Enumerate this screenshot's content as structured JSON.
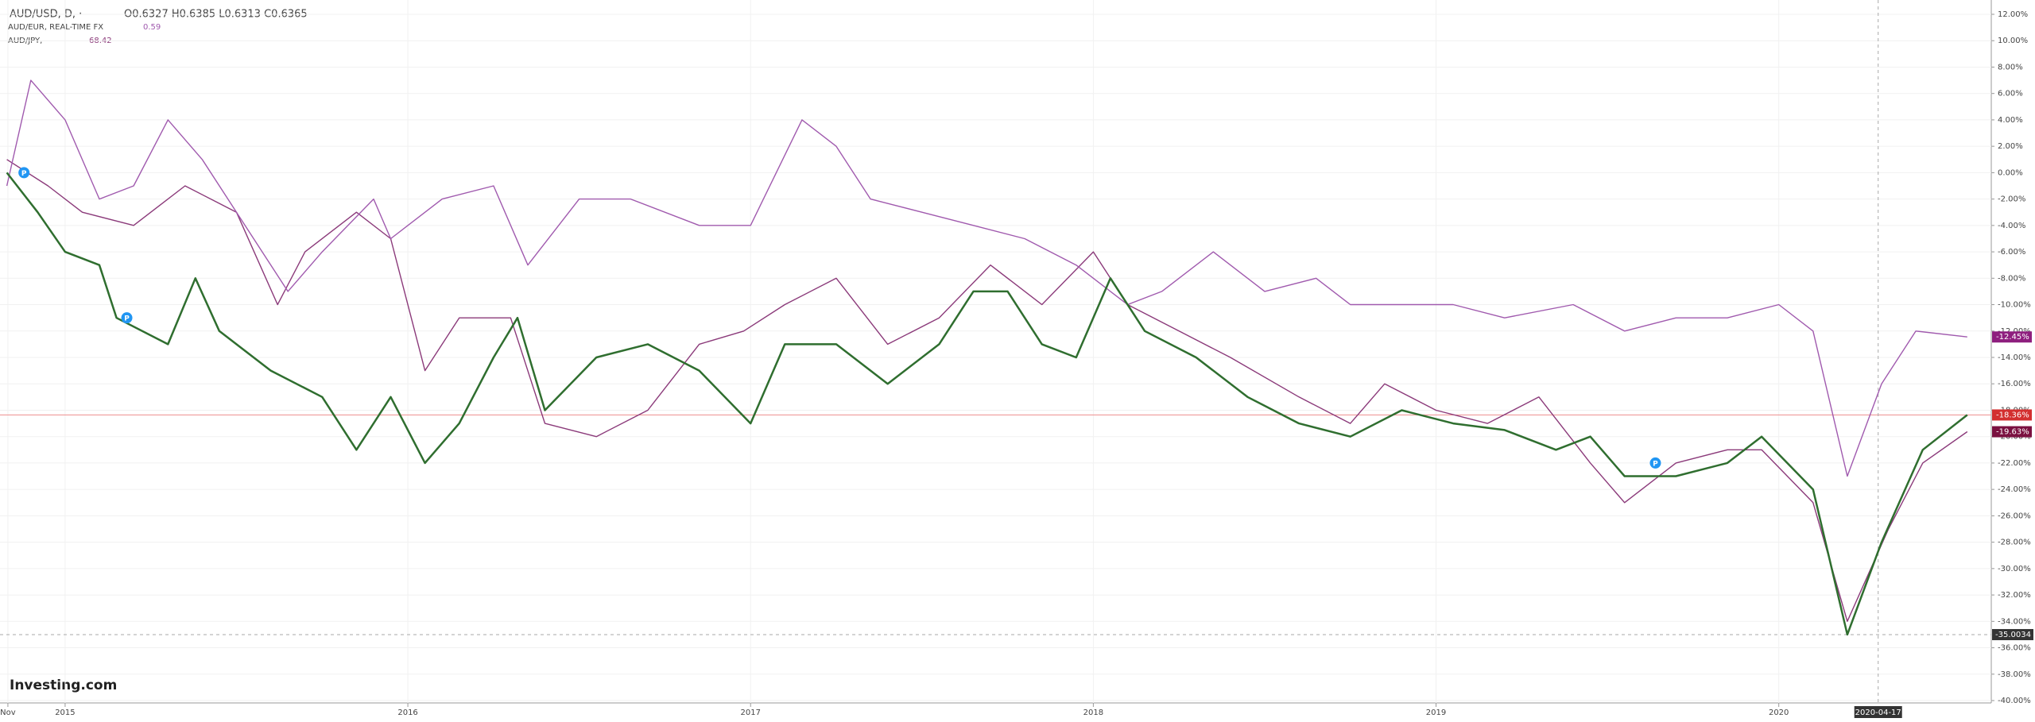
{
  "chart_data": {
    "type": "line",
    "title": "AUD/USD, D, ·",
    "ohlc_text": "O0.6327 H0.6385 L0.6313 C0.6365",
    "watermark": "Investing.com",
    "xlim": [
      2014.81,
      2020.62
    ],
    "ylim": [
      -40,
      12
    ],
    "grid": true,
    "xticks": [
      {
        "value": 2014.833,
        "label": "Nov"
      },
      {
        "value": 2015,
        "label": "2015"
      },
      {
        "value": 2016,
        "label": "2016"
      },
      {
        "value": 2017,
        "label": "2017"
      },
      {
        "value": 2018,
        "label": "2018"
      },
      {
        "value": 2019,
        "label": "2019"
      },
      {
        "value": 2020,
        "label": "2020"
      }
    ],
    "yticks": [
      {
        "value": 12,
        "label": "12.00%"
      },
      {
        "value": 10,
        "label": "10.00%"
      },
      {
        "value": 8,
        "label": "8.00%"
      },
      {
        "value": 6,
        "label": "6.00%"
      },
      {
        "value": 4,
        "label": "4.00%"
      },
      {
        "value": 2,
        "label": "2.00%"
      },
      {
        "value": 0,
        "label": "0.00%"
      },
      {
        "value": -2,
        "label": "-2.00%"
      },
      {
        "value": -4,
        "label": "-4.00%"
      },
      {
        "value": -6,
        "label": "-6.00%"
      },
      {
        "value": -8,
        "label": "-8.00%"
      },
      {
        "value": -10,
        "label": "-10.00%"
      },
      {
        "value": -12,
        "label": "-12.00%"
      },
      {
        "value": -14,
        "label": "-14.00%"
      },
      {
        "value": -16,
        "label": "-16.00%"
      },
      {
        "value": -18,
        "label": "-18.00%"
      },
      {
        "value": -20,
        "label": "-20.00%"
      },
      {
        "value": -22,
        "label": "-22.00%"
      },
      {
        "value": -24,
        "label": "-24.00%"
      },
      {
        "value": -26,
        "label": "-26.00%"
      },
      {
        "value": -28,
        "label": "-28.00%"
      },
      {
        "value": -30,
        "label": "-30.00%"
      },
      {
        "value": -32,
        "label": "-32.00%"
      },
      {
        "value": -34,
        "label": "-34.00%"
      },
      {
        "value": -36,
        "label": "-36.00%"
      },
      {
        "value": -38,
        "label": "-38.00%"
      },
      {
        "value": -40,
        "label": "-40.00%"
      }
    ],
    "series": [
      {
        "name": "AUD/USD",
        "color": "#2f6e2f",
        "width": 2.5,
        "x": [
          2014.83,
          2014.92,
          2015.0,
          2015.1,
          2015.15,
          2015.3,
          2015.38,
          2015.45,
          2015.6,
          2015.75,
          2015.85,
          2015.95,
          2016.05,
          2016.15,
          2016.25,
          2016.32,
          2016.4,
          2016.55,
          2016.7,
          2016.85,
          2017.0,
          2017.1,
          2017.25,
          2017.4,
          2017.55,
          2017.65,
          2017.75,
          2017.85,
          2017.95,
          2018.05,
          2018.15,
          2018.3,
          2018.45,
          2018.6,
          2018.75,
          2018.9,
          2019.05,
          2019.2,
          2019.35,
          2019.45,
          2019.55,
          2019.7,
          2019.85,
          2019.95,
          2020.1,
          2020.2,
          2020.3,
          2020.42,
          2020.55
        ],
        "values": [
          0,
          -3,
          -6,
          -7,
          -11,
          -13,
          -8,
          -12,
          -15,
          -17,
          -21,
          -17,
          -22,
          -19,
          -14,
          -11,
          -18,
          -14,
          -13,
          -15,
          -19,
          -13,
          -13,
          -16,
          -13,
          -9,
          -9,
          -13,
          -14,
          -8,
          -12,
          -14,
          -17,
          -19,
          -20,
          -18,
          -19,
          -19.5,
          -21,
          -20,
          -23,
          -23,
          -22,
          -20,
          -24,
          -35,
          -28,
          -21,
          -18.36
        ]
      },
      {
        "name": "AUD/EUR, REAL-TIME FX",
        "legend_value": "0.59",
        "color": "#a05aae",
        "width": 1.4,
        "x": [
          2014.83,
          2014.9,
          2015.0,
          2015.1,
          2015.2,
          2015.3,
          2015.4,
          2015.5,
          2015.65,
          2015.75,
          2015.9,
          2015.95,
          2016.1,
          2016.25,
          2016.35,
          2016.5,
          2016.65,
          2016.85,
          2017.0,
          2017.15,
          2017.25,
          2017.35,
          2017.5,
          2017.65,
          2017.8,
          2017.95,
          2018.1,
          2018.2,
          2018.35,
          2018.5,
          2018.65,
          2018.75,
          2018.9,
          2019.05,
          2019.2,
          2019.4,
          2019.55,
          2019.7,
          2019.85,
          2020.0,
          2020.1,
          2020.2,
          2020.3,
          2020.4,
          2020.55
        ],
        "values": [
          -1,
          7,
          4,
          -2,
          -1,
          4,
          1,
          -3,
          -9,
          -6,
          -2,
          -5,
          -2,
          -1,
          -7,
          -2,
          -2,
          -4,
          -4,
          4,
          2,
          -2,
          -3,
          -4,
          -5,
          -7,
          -10,
          -9,
          -6,
          -9,
          -8,
          -10,
          -10,
          -10,
          -11,
          -10,
          -12,
          -11,
          -11,
          -10,
          -12,
          -23,
          -16,
          -12,
          -12.45
        ]
      },
      {
        "name": "AUD/JPY,",
        "legend_value": "68.42",
        "color": "#8b3a7a",
        "width": 1.4,
        "x": [
          2014.83,
          2014.95,
          2015.05,
          2015.2,
          2015.35,
          2015.5,
          2015.62,
          2015.7,
          2015.85,
          2015.95,
          2016.05,
          2016.15,
          2016.3,
          2016.4,
          2016.55,
          2016.7,
          2016.85,
          2016.98,
          2017.1,
          2017.25,
          2017.4,
          2017.55,
          2017.7,
          2017.85,
          2018.0,
          2018.1,
          2018.25,
          2018.4,
          2018.6,
          2018.75,
          2018.85,
          2019.0,
          2019.15,
          2019.3,
          2019.45,
          2019.55,
          2019.7,
          2019.85,
          2019.95,
          2020.1,
          2020.2,
          2020.32,
          2020.42,
          2020.55
        ],
        "values": [
          1,
          -1,
          -3,
          -4,
          -1,
          -3,
          -10,
          -6,
          -3,
          -5,
          -15,
          -11,
          -11,
          -19,
          -20,
          -18,
          -13,
          -12,
          -10,
          -8,
          -13,
          -11,
          -7,
          -10,
          -6,
          -10,
          -12,
          -14,
          -17,
          -19,
          -16,
          -18,
          -19,
          -17,
          -22,
          -25,
          -22,
          -21,
          -21,
          -25,
          -34,
          -27,
          -22,
          -19.63
        ]
      }
    ],
    "price_labels": [
      {
        "value": -12.45,
        "label": "-12.45%",
        "color": "#8e1f7e"
      },
      {
        "value": -18.36,
        "label": "-18.36%",
        "color": "#d32f2f"
      },
      {
        "value": -19.63,
        "label": "-19.63%",
        "color": "#7a1040"
      }
    ],
    "reference_line": {
      "value": -18.36,
      "color": "#ef9a9a"
    },
    "crosshair": {
      "x": {
        "value": 2020.29,
        "label": "2020-04-17"
      },
      "y": {
        "value": -35.0034,
        "label": "-35.0034"
      }
    },
    "events": [
      {
        "x": 2014.88,
        "y": 0,
        "label": "P"
      },
      {
        "x": 2015.18,
        "y": -11,
        "label": "P"
      },
      {
        "x": 2019.64,
        "y": -22,
        "label": "P"
      }
    ]
  }
}
